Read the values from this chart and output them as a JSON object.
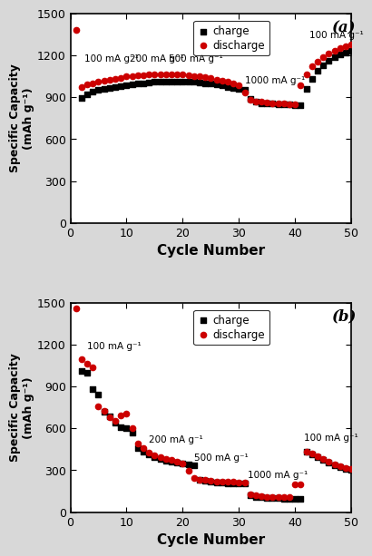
{
  "panel_a": {
    "title": "(a)",
    "charge": {
      "x": [
        2,
        3,
        4,
        5,
        6,
        7,
        8,
        9,
        10,
        11,
        12,
        13,
        14,
        15,
        16,
        17,
        18,
        19,
        20,
        21,
        22,
        23,
        24,
        25,
        26,
        27,
        28,
        29,
        30,
        31,
        32,
        33,
        34,
        35,
        36,
        37,
        38,
        39,
        40,
        41,
        42,
        43,
        44,
        45,
        46,
        47,
        48,
        49,
        50
      ],
      "y": [
        895,
        920,
        940,
        950,
        960,
        968,
        975,
        980,
        988,
        993,
        997,
        1000,
        1005,
        1008,
        1010,
        1012,
        1013,
        1013,
        1012,
        1010,
        1008,
        1005,
        1000,
        995,
        990,
        982,
        975,
        968,
        960,
        950,
        890,
        865,
        858,
        855,
        852,
        850,
        848,
        846,
        845,
        845,
        960,
        1030,
        1090,
        1130,
        1160,
        1185,
        1205,
        1220,
        1235
      ]
    },
    "discharge": {
      "x": [
        1,
        2,
        3,
        4,
        5,
        6,
        7,
        8,
        9,
        10,
        11,
        12,
        13,
        14,
        15,
        16,
        17,
        18,
        19,
        20,
        21,
        22,
        23,
        24,
        25,
        26,
        27,
        28,
        29,
        30,
        31,
        32,
        33,
        34,
        35,
        36,
        37,
        38,
        39,
        40,
        41,
        42,
        43,
        44,
        45,
        46,
        47,
        48,
        49,
        50
      ],
      "y": [
        1380,
        975,
        990,
        1000,
        1010,
        1018,
        1025,
        1033,
        1040,
        1047,
        1052,
        1055,
        1058,
        1062,
        1063,
        1065,
        1065,
        1065,
        1063,
        1060,
        1057,
        1053,
        1048,
        1042,
        1035,
        1027,
        1018,
        1008,
        998,
        987,
        930,
        880,
        870,
        865,
        860,
        858,
        855,
        852,
        850,
        850,
        985,
        1065,
        1120,
        1155,
        1185,
        1210,
        1232,
        1250,
        1262,
        1275
      ]
    },
    "ann_a1_text": "100 mA g⁻¹",
    "ann_a1_x": 2.5,
    "ann_a1_y": 1140,
    "ann_a2_text": "200 mA g⁻¹",
    "ann_a2_x": 10.5,
    "ann_a2_y": 1140,
    "ann_a3_text": "500 mA g⁻¹",
    "ann_a3_x": 17.5,
    "ann_a3_y": 1140,
    "ann_a4_text": "1000 mA g⁻¹",
    "ann_a4_x": 31.0,
    "ann_a4_y": 985,
    "ann_a5_text": "100 mA g⁻¹",
    "ann_a5_x": 42.5,
    "ann_a5_y": 1310
  },
  "panel_b": {
    "title": "(b)",
    "charge": {
      "x": [
        2,
        3,
        4,
        5,
        6,
        7,
        8,
        9,
        10,
        11,
        12,
        13,
        14,
        15,
        16,
        17,
        18,
        19,
        20,
        21,
        22,
        23,
        24,
        25,
        26,
        27,
        28,
        29,
        30,
        31,
        32,
        33,
        34,
        35,
        36,
        37,
        38,
        39,
        40,
        41,
        42,
        43,
        44,
        45,
        46,
        47,
        48,
        49,
        50
      ],
      "y": [
        1010,
        995,
        880,
        840,
        720,
        685,
        640,
        610,
        600,
        570,
        455,
        435,
        415,
        392,
        378,
        368,
        360,
        352,
        348,
        342,
        338,
        230,
        222,
        215,
        212,
        210,
        208,
        207,
        206,
        205,
        118,
        110,
        105,
        103,
        100,
        98,
        97,
        96,
        95,
        95,
        430,
        410,
        393,
        375,
        355,
        338,
        323,
        310,
        300
      ]
    },
    "discharge": {
      "x": [
        1,
        2,
        3,
        4,
        5,
        6,
        7,
        8,
        9,
        10,
        11,
        12,
        13,
        14,
        15,
        16,
        17,
        18,
        19,
        20,
        21,
        22,
        23,
        24,
        25,
        26,
        27,
        28,
        29,
        30,
        31,
        32,
        33,
        34,
        35,
        36,
        37,
        38,
        39,
        40,
        41,
        42,
        43,
        44,
        45,
        46,
        47,
        48,
        49,
        50
      ],
      "y": [
        1455,
        1095,
        1065,
        1035,
        758,
        726,
        678,
        655,
        695,
        705,
        598,
        490,
        458,
        428,
        408,
        393,
        382,
        372,
        362,
        348,
        298,
        245,
        233,
        228,
        224,
        220,
        218,
        216,
        215,
        213,
        213,
        125,
        118,
        113,
        110,
        108,
        107,
        106,
        105,
        200,
        200,
        435,
        418,
        398,
        378,
        358,
        342,
        327,
        313,
        308
      ]
    },
    "ann_b1_text": "100 mA g⁻¹",
    "ann_b1_x": 3.0,
    "ann_b1_y": 1155,
    "ann_b2_text": "200 mA g⁻¹",
    "ann_b2_x": 14.0,
    "ann_b2_y": 488,
    "ann_b3_text": "500 mA g⁻¹",
    "ann_b3_x": 22.0,
    "ann_b3_y": 355,
    "ann_b4_text": "1000 mA g⁻¹",
    "ann_b4_x": 31.5,
    "ann_b4_y": 235,
    "ann_b5_text": "100 mA g⁻¹",
    "ann_b5_x": 41.5,
    "ann_b5_y": 502
  },
  "ylim": [
    0,
    1500
  ],
  "yticks": [
    0,
    300,
    600,
    900,
    1200,
    1500
  ],
  "xlim": [
    0,
    50
  ],
  "xticks": [
    0,
    10,
    20,
    30,
    40,
    50
  ],
  "xlabel": "Cycle Number",
  "ylabel": "Specific Capacity\n(mAh g⁻¹)",
  "charge_color": "#000000",
  "discharge_color": "#cc0000",
  "marker_charge": "s",
  "marker_discharge": "o",
  "marker_size": 4.5,
  "legend_charge": "charge",
  "legend_discharge": "discharge",
  "bg_color": "#ffffff",
  "fig_bg": "#d8d8d8"
}
